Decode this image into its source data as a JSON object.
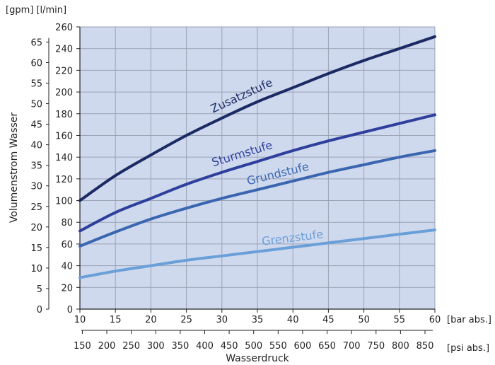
{
  "chart_data": {
    "type": "line",
    "xlabel": "Wasserdruck",
    "ylabel": "Volumenstrom Wasser",
    "x_unit": "[bar abs.]",
    "x2_unit": "[psi abs.]",
    "y_units": "[gpm] [l/min]",
    "xlim": [
      10,
      60
    ],
    "ylim": [
      0,
      260
    ],
    "x_ticks": [
      10,
      15,
      20,
      25,
      30,
      35,
      40,
      45,
      50,
      55,
      60
    ],
    "y_ticks_lmin": [
      0,
      20,
      40,
      60,
      80,
      100,
      120,
      140,
      160,
      180,
      200,
      220,
      240,
      260
    ],
    "y_ticks_gpm": [
      0,
      5,
      10,
      15,
      20,
      25,
      30,
      35,
      40,
      45,
      50,
      55,
      60,
      65
    ],
    "x2_ticks_psi": [
      150,
      200,
      250,
      300,
      350,
      400,
      450,
      500,
      550,
      600,
      650,
      700,
      750,
      800,
      850
    ],
    "grid": true,
    "background_color": "#cfd9ee",
    "series": [
      {
        "name": "Zusatzstufe",
        "color": "#1b2a63",
        "x": [
          10,
          15,
          20,
          25,
          30,
          35,
          40,
          45,
          50,
          55,
          60
        ],
        "y": [
          100,
          123,
          142,
          160,
          176,
          191,
          204,
          217,
          229,
          240,
          251
        ]
      },
      {
        "name": "Sturmstufe",
        "color": "#2e3f9c",
        "x": [
          10,
          15,
          20,
          25,
          30,
          35,
          40,
          45,
          50,
          55,
          60
        ],
        "y": [
          72,
          89,
          102,
          115,
          126,
          136,
          146,
          155,
          163,
          171,
          179
        ]
      },
      {
        "name": "Grundstufe",
        "color": "#3a66b0",
        "x": [
          10,
          15,
          20,
          25,
          30,
          35,
          40,
          45,
          50,
          55,
          60
        ],
        "y": [
          58,
          71,
          83,
          93,
          102,
          110,
          118,
          126,
          133,
          140,
          146
        ]
      },
      {
        "name": "Grenzstufe",
        "color": "#6a9fd8",
        "x": [
          10,
          15,
          20,
          25,
          30,
          35,
          40,
          45,
          50,
          55,
          60
        ],
        "y": [
          29,
          35,
          40,
          45,
          49,
          53,
          57,
          61,
          65,
          69,
          73
        ]
      }
    ]
  }
}
